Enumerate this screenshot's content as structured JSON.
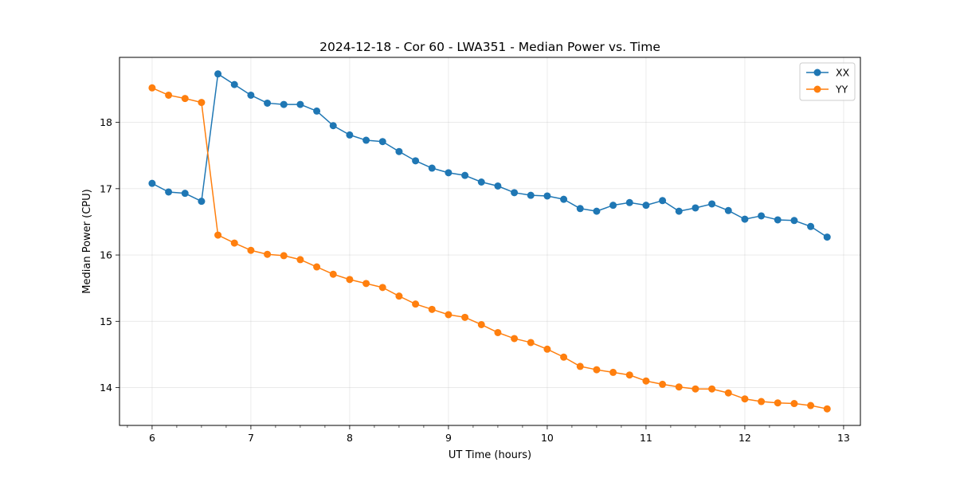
{
  "chart_data": {
    "type": "line",
    "title": "2024-12-18 - Cor 60 - LWA351 - Median Power vs. Time",
    "xlabel": "UT Time (hours)",
    "ylabel": "Median Power (CPU)",
    "xlim": [
      5.67,
      13.17
    ],
    "ylim": [
      13.43,
      18.98
    ],
    "xticks": [
      "6",
      "7",
      "8",
      "9",
      "10",
      "11",
      "12",
      "13"
    ],
    "yticks": [
      "14",
      "15",
      "16",
      "17",
      "18"
    ],
    "grid": true,
    "legend_position": "top-right",
    "x": [
      6.0,
      6.1667,
      6.3333,
      6.5,
      6.6667,
      6.8333,
      7.0,
      7.1667,
      7.3333,
      7.5,
      7.6667,
      7.8333,
      8.0,
      8.1667,
      8.3333,
      8.5,
      8.6667,
      8.8333,
      9.0,
      9.1667,
      9.3333,
      9.5,
      9.6667,
      9.8333,
      10.0,
      10.1667,
      10.3333,
      10.5,
      10.6667,
      10.8333,
      11.0,
      11.1667,
      11.3333,
      11.5,
      11.6667,
      11.8333,
      12.0,
      12.1667,
      12.3333,
      12.5,
      12.6667,
      12.8333
    ],
    "series": [
      {
        "name": "XX",
        "color": "#1f77b4",
        "values": [
          17.08,
          16.95,
          16.93,
          16.81,
          18.73,
          18.57,
          18.41,
          18.29,
          18.27,
          18.27,
          18.17,
          17.95,
          17.81,
          17.73,
          17.71,
          17.56,
          17.42,
          17.31,
          17.24,
          17.2,
          17.1,
          17.04,
          16.94,
          16.9,
          16.89,
          16.84,
          16.7,
          16.66,
          16.75,
          16.79,
          16.75,
          16.82,
          16.66,
          16.71,
          16.77,
          16.67,
          16.54,
          16.59,
          16.53,
          16.52,
          16.43,
          16.27
        ]
      },
      {
        "name": "YY",
        "color": "#ff7f0e",
        "values": [
          18.52,
          18.41,
          18.36,
          18.3,
          16.3,
          16.18,
          16.07,
          16.01,
          15.99,
          15.93,
          15.82,
          15.71,
          15.63,
          15.57,
          15.51,
          15.38,
          15.26,
          15.18,
          15.1,
          15.06,
          14.95,
          14.83,
          14.74,
          14.68,
          14.58,
          14.46,
          14.32,
          14.27,
          14.23,
          14.19,
          14.1,
          14.05,
          14.01,
          13.98,
          13.98,
          13.92,
          13.83,
          13.79,
          13.77,
          13.76,
          13.73,
          13.68
        ]
      }
    ]
  }
}
